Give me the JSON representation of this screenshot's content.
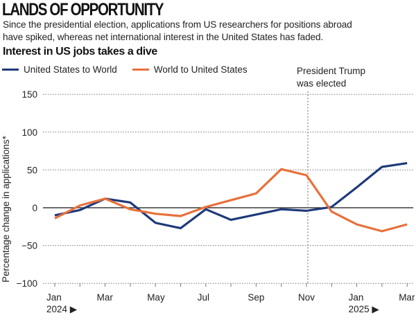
{
  "header": {
    "title": "LANDS OF OPPORTUNITY",
    "subtitle_line1": "Since the presidential election, applications from US researchers for positions abroad",
    "subtitle_line2": "have spiked, whereas net international interest in the United States has faded.",
    "chart_heading": "Interest in US jobs takes a dive"
  },
  "chart_data": {
    "type": "line",
    "title": "Interest in US jobs takes a dive",
    "xlabel": "",
    "ylabel": "Percentage change in applications*",
    "ylim": [
      -100,
      150
    ],
    "yticks": [
      150,
      100,
      50,
      0,
      -50,
      -100
    ],
    "ytick_labels": [
      "150",
      "100",
      "50",
      "0",
      "−50",
      "−100"
    ],
    "grid": true,
    "legend_position": "top-left",
    "x": [
      "2024-01",
      "2024-02",
      "2024-03",
      "2024-04",
      "2024-05",
      "2024-06",
      "2024-07",
      "2024-08",
      "2024-09",
      "2024-10",
      "2024-11",
      "2024-12",
      "2025-01",
      "2025-02",
      "2025-03"
    ],
    "xtick_labels": [
      {
        "index": 0,
        "label": "Jan",
        "year": "2024 ▶"
      },
      {
        "index": 2,
        "label": "Mar"
      },
      {
        "index": 4,
        "label": "May"
      },
      {
        "index": 6,
        "label": "Jul"
      },
      {
        "index": 8,
        "label": "Sep"
      },
      {
        "index": 10,
        "label": "Nov"
      },
      {
        "index": 12,
        "label": "Jan",
        "year": "2025 ▶"
      },
      {
        "index": 14,
        "label": "Mar"
      }
    ],
    "series": [
      {
        "name": "United States to World",
        "color": "#1f3a7a",
        "values": [
          -10,
          -3,
          12,
          7,
          -20,
          -27,
          -2,
          -16,
          -9,
          -2,
          -4,
          1,
          27,
          54,
          59
        ]
      },
      {
        "name": "World to United States",
        "color": "#e8703a",
        "values": [
          -14,
          3,
          12,
          -2,
          -8,
          -11,
          1,
          10,
          19,
          51,
          43,
          -5,
          -22,
          -31,
          -22
        ]
      }
    ],
    "annotations": [
      {
        "x_index": 10,
        "text_line1": "President Trump",
        "text_line2": "was elected",
        "style": "dashed-vertical-line"
      }
    ]
  }
}
